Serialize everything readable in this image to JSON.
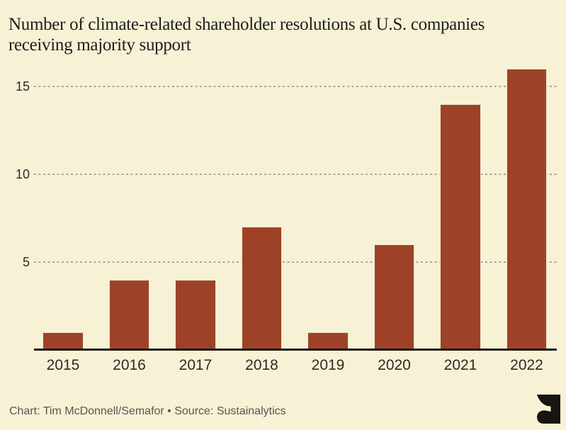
{
  "title": {
    "line1": "Number of climate-related shareholder resolutions at U.S. companies",
    "line2": "receiving majority support"
  },
  "footer": {
    "credit": "Chart: Tim McDonnell/Semafor • Source: Sustainalytics"
  },
  "logo": {
    "name": "semafor-logo"
  },
  "colors": {
    "background": "#f7f2d6",
    "bar": "#9e4227",
    "axis_line": "#1b1b16",
    "gridline": "#aba693",
    "title_text": "#1d1d1b",
    "tick_text": "#2c2c28",
    "footer_text": "#56564c",
    "logo": "#16150f"
  },
  "chart_data": {
    "type": "bar",
    "title": "Number of climate-related shareholder resolutions at U.S. companies receiving majority support",
    "categories": [
      "2015",
      "2016",
      "2017",
      "2018",
      "2019",
      "2020",
      "2021",
      "2022"
    ],
    "values": [
      1,
      4,
      4,
      7,
      1,
      6,
      14,
      16
    ],
    "xlabel": "",
    "ylabel": "",
    "ylim": [
      0,
      16
    ],
    "yticks": [
      5,
      10,
      15
    ],
    "legend": "none",
    "grid": "horizontal-dotted",
    "bar_color": "#9e4227"
  }
}
